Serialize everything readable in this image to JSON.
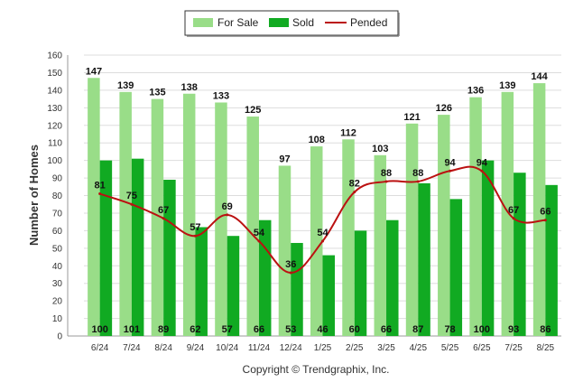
{
  "chart_data": {
    "type": "bar",
    "categories": [
      "6/24",
      "7/24",
      "8/24",
      "9/24",
      "10/24",
      "11/24",
      "12/24",
      "1/25",
      "2/25",
      "3/25",
      "4/25",
      "5/25",
      "6/25",
      "7/25",
      "8/25"
    ],
    "series": [
      {
        "name": "For Sale",
        "type": "bar",
        "color": "#99dd88",
        "values": [
          147,
          139,
          135,
          138,
          133,
          125,
          97,
          108,
          112,
          103,
          121,
          126,
          136,
          139,
          144
        ]
      },
      {
        "name": "Sold",
        "type": "bar",
        "color": "#11aa22",
        "values": [
          100,
          101,
          89,
          62,
          57,
          66,
          53,
          46,
          60,
          66,
          87,
          78,
          100,
          93,
          86
        ]
      },
      {
        "name": "Pended",
        "type": "line",
        "color": "#bb1111",
        "values": [
          81,
          75,
          67,
          57,
          69,
          54,
          36,
          54,
          82,
          88,
          88,
          94,
          94,
          67,
          66
        ]
      }
    ],
    "ylabel": "Number of Homes",
    "ylim": [
      0,
      160
    ],
    "yticks": [
      0,
      10,
      20,
      30,
      40,
      50,
      60,
      70,
      80,
      90,
      100,
      110,
      120,
      130,
      140,
      150,
      160
    ],
    "grid": true,
    "legend_position": "top-center",
    "footer": "Copyright © Trendgraphix, Inc."
  }
}
